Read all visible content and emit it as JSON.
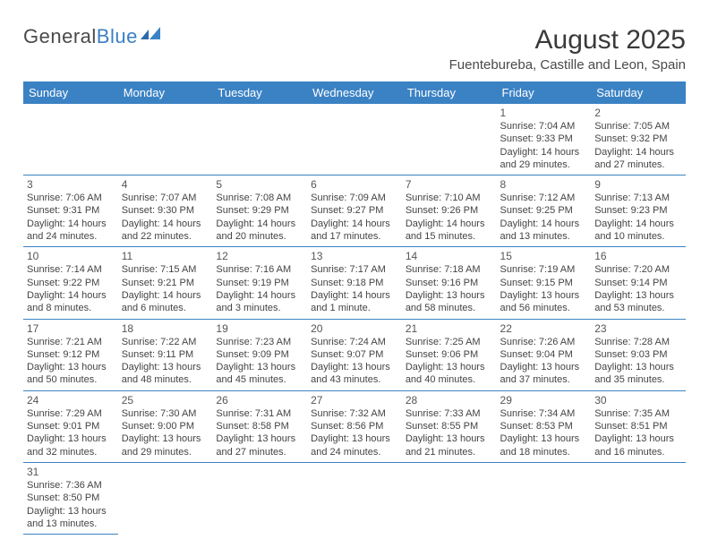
{
  "logo": {
    "part1": "General",
    "part2": "Blue"
  },
  "title": "August 2025",
  "location": "Fuentebureba, Castille and Leon, Spain",
  "colors": {
    "header_bg": "#3b82c4",
    "header_text": "#ffffff",
    "border": "#3b82c4",
    "text": "#444444",
    "logo_blue": "#3b7fc4"
  },
  "weekdays": [
    "Sunday",
    "Monday",
    "Tuesday",
    "Wednesday",
    "Thursday",
    "Friday",
    "Saturday"
  ],
  "weeks": [
    [
      null,
      null,
      null,
      null,
      null,
      {
        "n": "1",
        "sunrise": "Sunrise: 7:04 AM",
        "sunset": "Sunset: 9:33 PM",
        "daylight": "Daylight: 14 hours and 29 minutes."
      },
      {
        "n": "2",
        "sunrise": "Sunrise: 7:05 AM",
        "sunset": "Sunset: 9:32 PM",
        "daylight": "Daylight: 14 hours and 27 minutes."
      }
    ],
    [
      {
        "n": "3",
        "sunrise": "Sunrise: 7:06 AM",
        "sunset": "Sunset: 9:31 PM",
        "daylight": "Daylight: 14 hours and 24 minutes."
      },
      {
        "n": "4",
        "sunrise": "Sunrise: 7:07 AM",
        "sunset": "Sunset: 9:30 PM",
        "daylight": "Daylight: 14 hours and 22 minutes."
      },
      {
        "n": "5",
        "sunrise": "Sunrise: 7:08 AM",
        "sunset": "Sunset: 9:29 PM",
        "daylight": "Daylight: 14 hours and 20 minutes."
      },
      {
        "n": "6",
        "sunrise": "Sunrise: 7:09 AM",
        "sunset": "Sunset: 9:27 PM",
        "daylight": "Daylight: 14 hours and 17 minutes."
      },
      {
        "n": "7",
        "sunrise": "Sunrise: 7:10 AM",
        "sunset": "Sunset: 9:26 PM",
        "daylight": "Daylight: 14 hours and 15 minutes."
      },
      {
        "n": "8",
        "sunrise": "Sunrise: 7:12 AM",
        "sunset": "Sunset: 9:25 PM",
        "daylight": "Daylight: 14 hours and 13 minutes."
      },
      {
        "n": "9",
        "sunrise": "Sunrise: 7:13 AM",
        "sunset": "Sunset: 9:23 PM",
        "daylight": "Daylight: 14 hours and 10 minutes."
      }
    ],
    [
      {
        "n": "10",
        "sunrise": "Sunrise: 7:14 AM",
        "sunset": "Sunset: 9:22 PM",
        "daylight": "Daylight: 14 hours and 8 minutes."
      },
      {
        "n": "11",
        "sunrise": "Sunrise: 7:15 AM",
        "sunset": "Sunset: 9:21 PM",
        "daylight": "Daylight: 14 hours and 6 minutes."
      },
      {
        "n": "12",
        "sunrise": "Sunrise: 7:16 AM",
        "sunset": "Sunset: 9:19 PM",
        "daylight": "Daylight: 14 hours and 3 minutes."
      },
      {
        "n": "13",
        "sunrise": "Sunrise: 7:17 AM",
        "sunset": "Sunset: 9:18 PM",
        "daylight": "Daylight: 14 hours and 1 minute."
      },
      {
        "n": "14",
        "sunrise": "Sunrise: 7:18 AM",
        "sunset": "Sunset: 9:16 PM",
        "daylight": "Daylight: 13 hours and 58 minutes."
      },
      {
        "n": "15",
        "sunrise": "Sunrise: 7:19 AM",
        "sunset": "Sunset: 9:15 PM",
        "daylight": "Daylight: 13 hours and 56 minutes."
      },
      {
        "n": "16",
        "sunrise": "Sunrise: 7:20 AM",
        "sunset": "Sunset: 9:14 PM",
        "daylight": "Daylight: 13 hours and 53 minutes."
      }
    ],
    [
      {
        "n": "17",
        "sunrise": "Sunrise: 7:21 AM",
        "sunset": "Sunset: 9:12 PM",
        "daylight": "Daylight: 13 hours and 50 minutes."
      },
      {
        "n": "18",
        "sunrise": "Sunrise: 7:22 AM",
        "sunset": "Sunset: 9:11 PM",
        "daylight": "Daylight: 13 hours and 48 minutes."
      },
      {
        "n": "19",
        "sunrise": "Sunrise: 7:23 AM",
        "sunset": "Sunset: 9:09 PM",
        "daylight": "Daylight: 13 hours and 45 minutes."
      },
      {
        "n": "20",
        "sunrise": "Sunrise: 7:24 AM",
        "sunset": "Sunset: 9:07 PM",
        "daylight": "Daylight: 13 hours and 43 minutes."
      },
      {
        "n": "21",
        "sunrise": "Sunrise: 7:25 AM",
        "sunset": "Sunset: 9:06 PM",
        "daylight": "Daylight: 13 hours and 40 minutes."
      },
      {
        "n": "22",
        "sunrise": "Sunrise: 7:26 AM",
        "sunset": "Sunset: 9:04 PM",
        "daylight": "Daylight: 13 hours and 37 minutes."
      },
      {
        "n": "23",
        "sunrise": "Sunrise: 7:28 AM",
        "sunset": "Sunset: 9:03 PM",
        "daylight": "Daylight: 13 hours and 35 minutes."
      }
    ],
    [
      {
        "n": "24",
        "sunrise": "Sunrise: 7:29 AM",
        "sunset": "Sunset: 9:01 PM",
        "daylight": "Daylight: 13 hours and 32 minutes."
      },
      {
        "n": "25",
        "sunrise": "Sunrise: 7:30 AM",
        "sunset": "Sunset: 9:00 PM",
        "daylight": "Daylight: 13 hours and 29 minutes."
      },
      {
        "n": "26",
        "sunrise": "Sunrise: 7:31 AM",
        "sunset": "Sunset: 8:58 PM",
        "daylight": "Daylight: 13 hours and 27 minutes."
      },
      {
        "n": "27",
        "sunrise": "Sunrise: 7:32 AM",
        "sunset": "Sunset: 8:56 PM",
        "daylight": "Daylight: 13 hours and 24 minutes."
      },
      {
        "n": "28",
        "sunrise": "Sunrise: 7:33 AM",
        "sunset": "Sunset: 8:55 PM",
        "daylight": "Daylight: 13 hours and 21 minutes."
      },
      {
        "n": "29",
        "sunrise": "Sunrise: 7:34 AM",
        "sunset": "Sunset: 8:53 PM",
        "daylight": "Daylight: 13 hours and 18 minutes."
      },
      {
        "n": "30",
        "sunrise": "Sunrise: 7:35 AM",
        "sunset": "Sunset: 8:51 PM",
        "daylight": "Daylight: 13 hours and 16 minutes."
      }
    ],
    [
      {
        "n": "31",
        "sunrise": "Sunrise: 7:36 AM",
        "sunset": "Sunset: 8:50 PM",
        "daylight": "Daylight: 13 hours and 13 minutes."
      },
      null,
      null,
      null,
      null,
      null,
      null
    ]
  ]
}
